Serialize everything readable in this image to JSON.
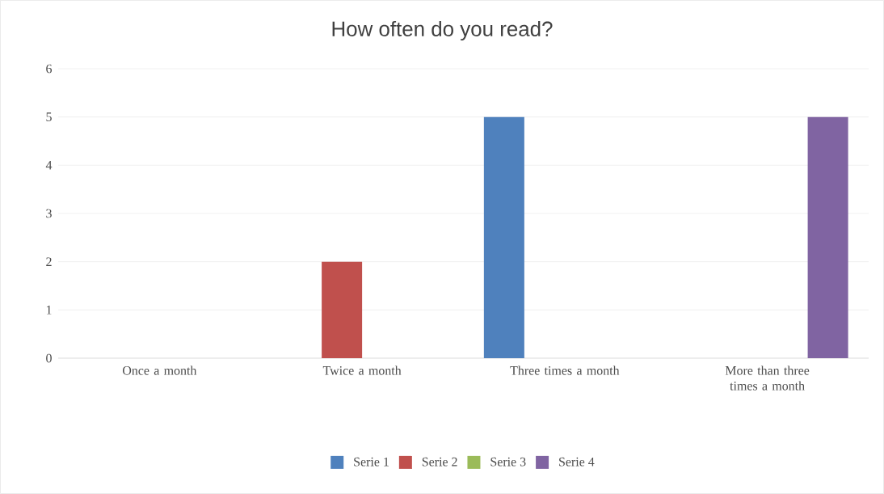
{
  "chart_data": {
    "type": "bar",
    "title": "How often do you read?",
    "categories": [
      "Once a month",
      "Twice a month",
      "Three times a month",
      "More than three times a month"
    ],
    "series": [
      {
        "name": "Serie 1",
        "color": "#4f81bd",
        "values": [
          null,
          null,
          5,
          null
        ]
      },
      {
        "name": "Serie 2",
        "color": "#c0504d",
        "values": [
          null,
          2,
          null,
          null
        ]
      },
      {
        "name": "Serie 3",
        "color": "#9bbb59",
        "values": [
          null,
          null,
          null,
          null
        ]
      },
      {
        "name": "Serie 4",
        "color": "#8064a2",
        "values": [
          null,
          null,
          null,
          5
        ]
      }
    ],
    "ylim": [
      0,
      6
    ],
    "yticks": [
      0,
      1,
      2,
      3,
      4,
      5,
      6
    ],
    "grid": "y",
    "legend": "bottom"
  }
}
